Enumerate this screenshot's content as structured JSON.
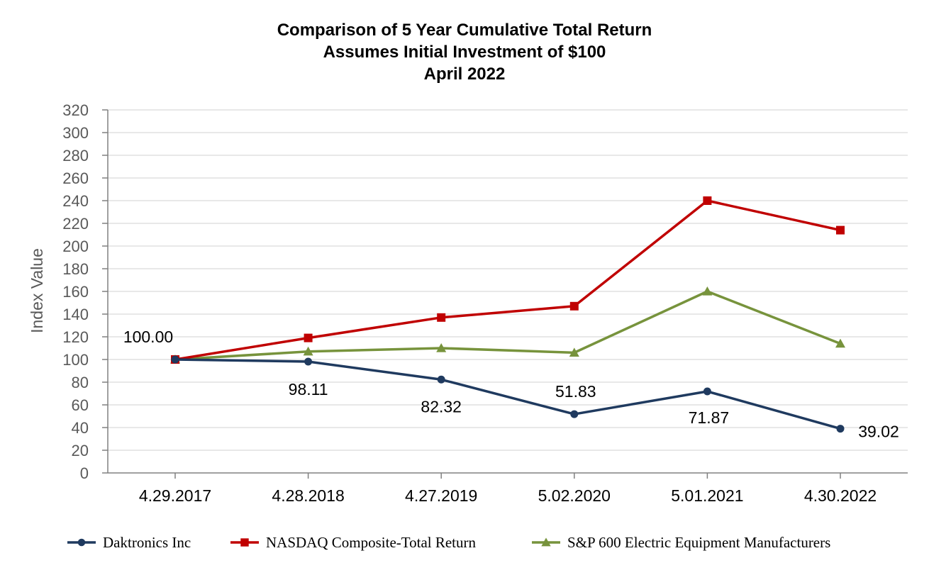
{
  "chart_data": {
    "type": "line",
    "title": [
      "Comparison of 5 Year Cumulative Total Return",
      "Assumes Initial Investment of $100",
      "April 2022"
    ],
    "xlabel": "",
    "ylabel": "Index Value",
    "categories": [
      "4.29.2017",
      "4.28.2018",
      "4.27.2019",
      "5.02.2020",
      "5.01.2021",
      "4.30.2022"
    ],
    "ylim": [
      0,
      320
    ],
    "yticks": [
      0,
      20,
      40,
      60,
      80,
      100,
      120,
      140,
      160,
      180,
      200,
      220,
      240,
      260,
      280,
      300,
      320
    ],
    "grid": true,
    "legend_position": "bottom",
    "series": [
      {
        "name": "Daktronics Inc",
        "color": "#1f3a5f",
        "marker": "circle",
        "values": [
          100.0,
          98.11,
          82.32,
          51.83,
          71.87,
          39.02
        ],
        "labels": [
          "100.00",
          "98.11",
          "82.32",
          "51.83",
          "71.87",
          "39.02"
        ]
      },
      {
        "name": "NASDAQ Composite-Total Return",
        "color": "#c00000",
        "marker": "square",
        "values": [
          100,
          119,
          137,
          147,
          240,
          214
        ]
      },
      {
        "name": "S&P 600 Electric Equipment Manufacturers",
        "color": "#77933c",
        "marker": "triangle",
        "values": [
          100,
          107,
          110,
          106,
          160,
          114
        ]
      }
    ]
  }
}
